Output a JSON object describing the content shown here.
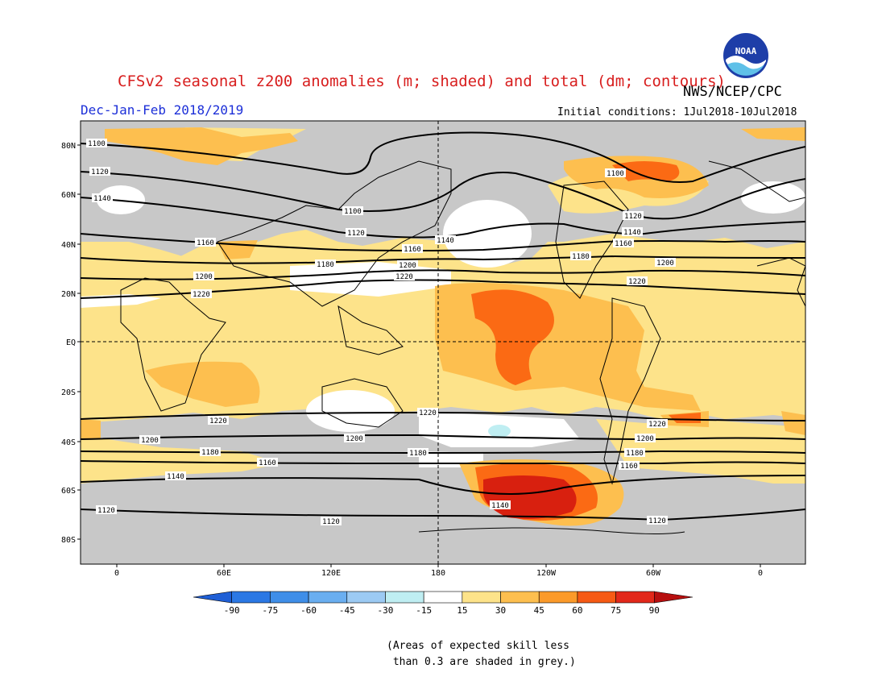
{
  "title": "CFSv2 seasonal z200 anomalies (m; shaded) and total (dm; contours)",
  "agency": "NWS/NCEP/CPC",
  "season": "Dec-Jan-Feb 2018/2019",
  "initial_conditions": "Initial conditions: 1Jul2018-10Jul2018",
  "logo_text": "NOAA",
  "map": {
    "lat_labels": [
      "80N",
      "60N",
      "40N",
      "20N",
      "EQ",
      "20S",
      "40S",
      "60S",
      "80S"
    ],
    "lon_labels": [
      "0",
      "60E",
      "120E",
      "180",
      "120W",
      "60W",
      "0"
    ],
    "contour_labels": [
      "1100",
      "1120",
      "1140",
      "1160",
      "1180",
      "1200",
      "1220"
    ]
  },
  "colorbar": {
    "ticks": [
      "-90",
      "-75",
      "-60",
      "-45",
      "-30",
      "-15",
      "15",
      "30",
      "45",
      "60",
      "75",
      "90"
    ],
    "colors": [
      "#1f5fd6",
      "#2b78e4",
      "#3f8ee8",
      "#6aaef0",
      "#9ccaf3",
      "#bfeef2",
      "#ffffff",
      "#fde38a",
      "#fdbf4f",
      "#fb9a2a",
      "#f65a14",
      "#e2281a",
      "#b70f0f"
    ]
  },
  "note": "(Areas of expected skill less\n than 0.3 are shaded in grey.)",
  "colors": {
    "title": "#d81e1e",
    "season": "#1c2fd8",
    "grey_shading": "#c8c8c8",
    "light_yellow": "#fde38a",
    "orange": "#fdbf4f",
    "dark_orange": "#fb6a14",
    "red": "#d8200f"
  }
}
